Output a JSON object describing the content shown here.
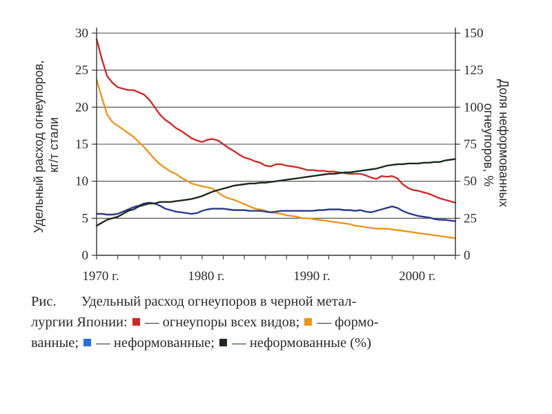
{
  "chart_data": {
    "type": "line",
    "x_range": [
      1970,
      2004
    ],
    "x_ticks": [
      {
        "x": 1970,
        "label": "1970 г."
      },
      {
        "x": 1980,
        "label": "1980 г."
      },
      {
        "x": 1990,
        "label": "1990 г."
      },
      {
        "x": 2000,
        "label": "2000 г."
      }
    ],
    "ylim_left": [
      0,
      30
    ],
    "yticks_left": [
      0,
      5,
      10,
      15,
      20,
      25,
      30
    ],
    "ylim_right": [
      0,
      150
    ],
    "yticks_right": [
      0,
      25,
      50,
      75,
      100,
      125,
      150
    ],
    "ylabel_left": [
      "Удельный расход огнеупоров,",
      "кг/т стали"
    ],
    "ylabel_right": [
      "Доля неформованных",
      "огнеупоров, %"
    ],
    "grid": "horizontal",
    "series": [
      {
        "key": "all",
        "axis": "left",
        "color": "#cc2a2a",
        "x": [
          1970,
          1970.5,
          1971,
          1971.5,
          1972,
          1972.5,
          1973,
          1973.5,
          1974,
          1974.5,
          1975,
          1975.5,
          1976,
          1976.5,
          1977,
          1977.5,
          1978,
          1978.5,
          1979,
          1979.5,
          1980,
          1980.5,
          1981,
          1981.5,
          1982,
          1982.5,
          1983,
          1983.5,
          1984,
          1984.5,
          1985,
          1985.5,
          1986,
          1986.5,
          1987,
          1987.5,
          1988,
          1988.5,
          1989,
          1989.5,
          1990,
          1990.5,
          1991,
          1991.5,
          1992,
          1992.5,
          1993,
          1993.5,
          1994,
          1994.5,
          1995,
          1995.5,
          1996,
          1996.5,
          1997,
          1997.5,
          1998,
          1998.5,
          1999,
          1999.5,
          2000,
          2000.5,
          2001,
          2001.5,
          2002,
          2002.5,
          2003,
          2003.5,
          2004
        ],
        "y": [
          29.2,
          26.5,
          24.2,
          23.3,
          22.7,
          22.5,
          22.3,
          22.3,
          22.0,
          21.7,
          21.0,
          20.0,
          19.0,
          18.3,
          17.8,
          17.2,
          16.8,
          16.3,
          15.8,
          15.5,
          15.3,
          15.6,
          15.7,
          15.5,
          15.0,
          14.5,
          14.1,
          13.6,
          13.2,
          13.0,
          12.7,
          12.5,
          12.1,
          12.0,
          12.3,
          12.3,
          12.1,
          12.0,
          11.9,
          11.7,
          11.5,
          11.5,
          11.4,
          11.4,
          11.3,
          11.3,
          11.2,
          11.1,
          11.0,
          11.0,
          11.0,
          10.8,
          10.5,
          10.3,
          10.7,
          10.6,
          10.7,
          10.4,
          9.6,
          9.1,
          8.8,
          8.7,
          8.5,
          8.3,
          8.0,
          7.7,
          7.5,
          7.3,
          7.1
        ]
      },
      {
        "key": "shaped",
        "axis": "left",
        "color": "#e8951e",
        "x": [
          1970,
          1970.5,
          1971,
          1971.5,
          1972,
          1972.5,
          1973,
          1973.5,
          1974,
          1974.5,
          1975,
          1975.5,
          1976,
          1976.5,
          1977,
          1977.5,
          1978,
          1978.5,
          1979,
          1979.5,
          1980,
          1980.5,
          1981,
          1981.5,
          1982,
          1982.5,
          1983,
          1983.5,
          1984,
          1984.5,
          1985,
          1985.5,
          1986,
          1986.5,
          1987,
          1987.5,
          1988,
          1988.5,
          1989,
          1989.5,
          1990,
          1990.5,
          1991,
          1991.5,
          1992,
          1992.5,
          1993,
          1993.5,
          1994,
          1994.5,
          1995,
          1995.5,
          1996,
          1996.5,
          1997,
          1997.5,
          1998,
          1998.5,
          1999,
          1999.5,
          2000,
          2000.5,
          2001,
          2001.5,
          2002,
          2002.5,
          2003,
          2003.5,
          2004
        ],
        "y": [
          23.7,
          21.3,
          19.0,
          18.0,
          17.5,
          17.0,
          16.5,
          16.0,
          15.3,
          14.6,
          13.8,
          13.0,
          12.3,
          11.8,
          11.3,
          11.0,
          10.5,
          10.1,
          9.7,
          9.5,
          9.3,
          9.2,
          9.0,
          8.5,
          8.0,
          7.7,
          7.5,
          7.2,
          6.9,
          6.6,
          6.3,
          6.2,
          6.0,
          5.8,
          5.7,
          5.6,
          5.4,
          5.3,
          5.2,
          5.0,
          5.0,
          4.9,
          4.8,
          4.7,
          4.6,
          4.5,
          4.4,
          4.3,
          4.2,
          4.0,
          3.9,
          3.8,
          3.7,
          3.6,
          3.6,
          3.6,
          3.5,
          3.4,
          3.3,
          3.2,
          3.1,
          3.0,
          2.9,
          2.8,
          2.7,
          2.6,
          2.5,
          2.4,
          2.3
        ]
      },
      {
        "key": "unshaped",
        "axis": "left",
        "color": "#2b3a88",
        "x": [
          1970,
          1970.5,
          1971,
          1971.5,
          1972,
          1972.5,
          1973,
          1973.5,
          1974,
          1974.5,
          1975,
          1975.5,
          1976,
          1976.5,
          1977,
          1977.5,
          1978,
          1978.5,
          1979,
          1979.5,
          1980,
          1980.5,
          1981,
          1981.5,
          1982,
          1982.5,
          1983,
          1983.5,
          1984,
          1984.5,
          1985,
          1985.5,
          1986,
          1986.5,
          1987,
          1987.5,
          1988,
          1988.5,
          1989,
          1989.5,
          1990,
          1990.5,
          1991,
          1991.5,
          1992,
          1992.5,
          1993,
          1993.5,
          1994,
          1994.5,
          1995,
          1995.5,
          1996,
          1996.5,
          1997,
          1997.5,
          1998,
          1998.5,
          1999,
          1999.5,
          2000,
          2000.5,
          2001,
          2001.5,
          2002,
          2002.5,
          2003,
          2003.5,
          2004
        ],
        "y": [
          5.6,
          5.6,
          5.5,
          5.5,
          5.6,
          5.9,
          6.2,
          6.5,
          6.7,
          7.0,
          7.1,
          7.0,
          6.7,
          6.3,
          6.1,
          5.9,
          5.8,
          5.7,
          5.6,
          5.7,
          6.0,
          6.2,
          6.3,
          6.3,
          6.3,
          6.2,
          6.1,
          6.1,
          6.1,
          6.0,
          6.0,
          6.0,
          5.9,
          5.8,
          5.9,
          6.0,
          6.0,
          6.0,
          6.0,
          6.0,
          6.0,
          6.0,
          6.1,
          6.1,
          6.2,
          6.2,
          6.2,
          6.1,
          6.1,
          6.0,
          6.1,
          5.9,
          5.8,
          6.0,
          6.2,
          6.4,
          6.6,
          6.4,
          6.0,
          5.7,
          5.5,
          5.3,
          5.2,
          5.1,
          4.9,
          4.8,
          4.8,
          4.7,
          4.6
        ]
      },
      {
        "key": "unshaped_pct",
        "axis": "right",
        "color": "#1e2a1e",
        "x": [
          1970,
          1970.5,
          1971,
          1971.5,
          1972,
          1972.5,
          1973,
          1973.5,
          1974,
          1974.5,
          1975,
          1975.5,
          1976,
          1976.5,
          1977,
          1977.5,
          1978,
          1978.5,
          1979,
          1979.5,
          1980,
          1980.5,
          1981,
          1981.5,
          1982,
          1982.5,
          1983,
          1983.5,
          1984,
          1984.5,
          1985,
          1985.5,
          1986,
          1986.5,
          1987,
          1987.5,
          1988,
          1988.5,
          1989,
          1989.5,
          1990,
          1990.5,
          1991,
          1991.5,
          1992,
          1992.5,
          1993,
          1993.5,
          1994,
          1994.5,
          1995,
          1995.5,
          1996,
          1996.5,
          1997,
          1997.5,
          1998,
          1998.5,
          1999,
          1999.5,
          2000,
          2000.5,
          2001,
          2001.5,
          2002,
          2002.5,
          2003,
          2003.5,
          2004
        ],
        "y": [
          20,
          22,
          24,
          25,
          26,
          28,
          30,
          31,
          33,
          34,
          35,
          35,
          36,
          36,
          36,
          36.5,
          37,
          37.5,
          38,
          39,
          40,
          41.5,
          43,
          44,
          45,
          46,
          47,
          47.5,
          48,
          48.5,
          48.5,
          49,
          49,
          49.5,
          50,
          50.5,
          51,
          51.5,
          52,
          52.5,
          53,
          53.5,
          54,
          54.5,
          55,
          55,
          55.5,
          56,
          56,
          56.5,
          57,
          57.5,
          58,
          58.5,
          59.5,
          60.5,
          61,
          61.5,
          61.5,
          62,
          62,
          62,
          62.5,
          62.5,
          63,
          63,
          64,
          64.5,
          65
        ]
      }
    ]
  },
  "caption": {
    "prefix": "Рис.",
    "line1_text": "Удельный расход огнеупоров в черной метал-",
    "line2_text": "лургии Японии:",
    "legend_all": "— огнеупоры всех видов;",
    "legend_shaped_a": "— формо-",
    "line3_text": "ванные;",
    "legend_unshaped": "— неформованные;",
    "legend_unshaped_pct": "— неформованные (%)"
  },
  "colors": {
    "all": "#cc2a2a",
    "shaped": "#e8951e",
    "unshaped": "#2b3a88",
    "unshaped_pct": "#1e2a1e",
    "unshaped_marker": "#2a6fd6"
  }
}
